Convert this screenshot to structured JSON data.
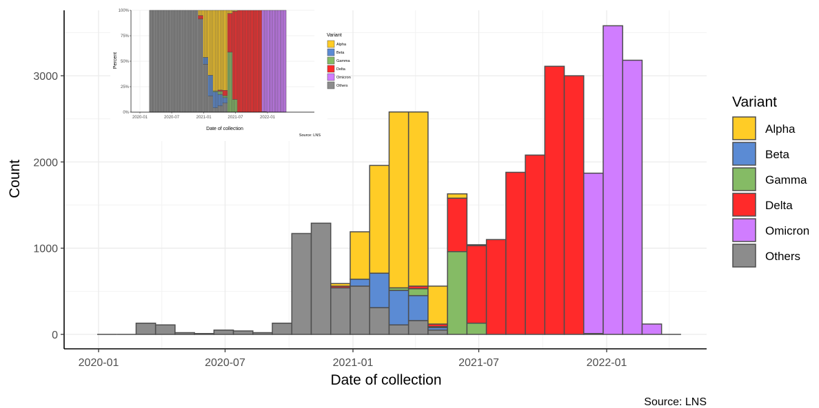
{
  "chart_data": [
    {
      "type": "bar",
      "stacked": true,
      "xlabel": "Date of collection",
      "ylabel": "Count",
      "caption": "Source: LNS",
      "legend_title": "Variant",
      "legend_position": "right",
      "grid": true,
      "x_ticks": [
        "2020-01",
        "2020-07",
        "2021-01",
        "2021-07",
        "2022-01"
      ],
      "y_ticks": [
        0,
        1000,
        2000,
        3000
      ],
      "ylim": [
        -170,
        3780
      ],
      "bin_starts": [
        "2019-12-30",
        "2020-01-27",
        "2020-02-24",
        "2020-03-23",
        "2020-04-20",
        "2020-05-18",
        "2020-06-15",
        "2020-07-13",
        "2020-08-10",
        "2020-09-07",
        "2020-10-05",
        "2020-11-02",
        "2020-11-30",
        "2020-12-28",
        "2021-01-25",
        "2021-02-22",
        "2021-03-22",
        "2021-04-19",
        "2021-05-17",
        "2021-06-14",
        "2021-07-12",
        "2021-08-09",
        "2021-09-06",
        "2021-10-04",
        "2021-11-01",
        "2021-11-29",
        "2021-12-27",
        "2022-01-24",
        "2022-02-21",
        "2022-03-21"
      ],
      "series": [
        {
          "name": "Others",
          "color": "#8c8c8c",
          "values": [
            0,
            0,
            130,
            110,
            20,
            10,
            50,
            40,
            20,
            130,
            1170,
            1290,
            540,
            560,
            310,
            110,
            160,
            50,
            0,
            0,
            0,
            0,
            0,
            0,
            0,
            0,
            0,
            0,
            0,
            0
          ]
        },
        {
          "name": "Beta",
          "color": "#5b8bd4",
          "values": [
            0,
            0,
            0,
            0,
            0,
            0,
            0,
            0,
            0,
            0,
            0,
            0,
            0,
            80,
            400,
            400,
            290,
            30,
            0,
            0,
            0,
            0,
            0,
            0,
            0,
            0,
            0,
            0,
            0,
            0
          ]
        },
        {
          "name": "Gamma",
          "color": "#85bb65",
          "values": [
            0,
            0,
            0,
            0,
            0,
            0,
            0,
            0,
            0,
            0,
            0,
            0,
            0,
            0,
            0,
            30,
            80,
            10,
            960,
            130,
            0,
            0,
            0,
            0,
            0,
            0,
            0,
            0,
            0,
            0
          ]
        },
        {
          "name": "Delta",
          "color": "#ff2a2a",
          "values": [
            0,
            0,
            0,
            0,
            0,
            0,
            0,
            0,
            0,
            0,
            0,
            0,
            20,
            0,
            0,
            0,
            30,
            30,
            620,
            900,
            1100,
            1880,
            2080,
            3110,
            3000,
            10,
            0,
            0,
            0,
            0
          ]
        },
        {
          "name": "Omicron",
          "color": "#d07dff",
          "values": [
            0,
            0,
            0,
            0,
            0,
            0,
            0,
            0,
            0,
            0,
            0,
            0,
            0,
            0,
            0,
            0,
            0,
            0,
            0,
            0,
            0,
            0,
            0,
            0,
            0,
            1860,
            3580,
            3180,
            120,
            0
          ]
        },
        {
          "name": "Alpha",
          "color": "#ffcc26",
          "values": [
            0,
            0,
            0,
            0,
            0,
            0,
            0,
            0,
            0,
            0,
            0,
            0,
            30,
            550,
            1250,
            2040,
            2020,
            440,
            50,
            10,
            0,
            0,
            0,
            0,
            0,
            0,
            0,
            0,
            0,
            0
          ]
        }
      ]
    },
    {
      "type": "bar",
      "stacked": true,
      "percent": true,
      "xlabel": "Date of collection",
      "ylabel": "Percent",
      "caption": "Source: LNS",
      "legend_title": "Variant",
      "legend_position": "right",
      "x_ticks": [
        "2020-01",
        "2020-07",
        "2021-01",
        "2021-07",
        "2022-01"
      ],
      "y_ticks": [
        "0%",
        "25%",
        "50%",
        "75%",
        "100%"
      ],
      "legend": [
        {
          "name": "Alpha",
          "color": "#ffcc26"
        },
        {
          "name": "Beta",
          "color": "#5b8bd4"
        },
        {
          "name": "Gamma",
          "color": "#85bb65"
        },
        {
          "name": "Delta",
          "color": "#ff2a2a"
        },
        {
          "name": "Omicron",
          "color": "#d07dff"
        },
        {
          "name": "Others",
          "color": "#8c8c8c"
        }
      ]
    }
  ]
}
